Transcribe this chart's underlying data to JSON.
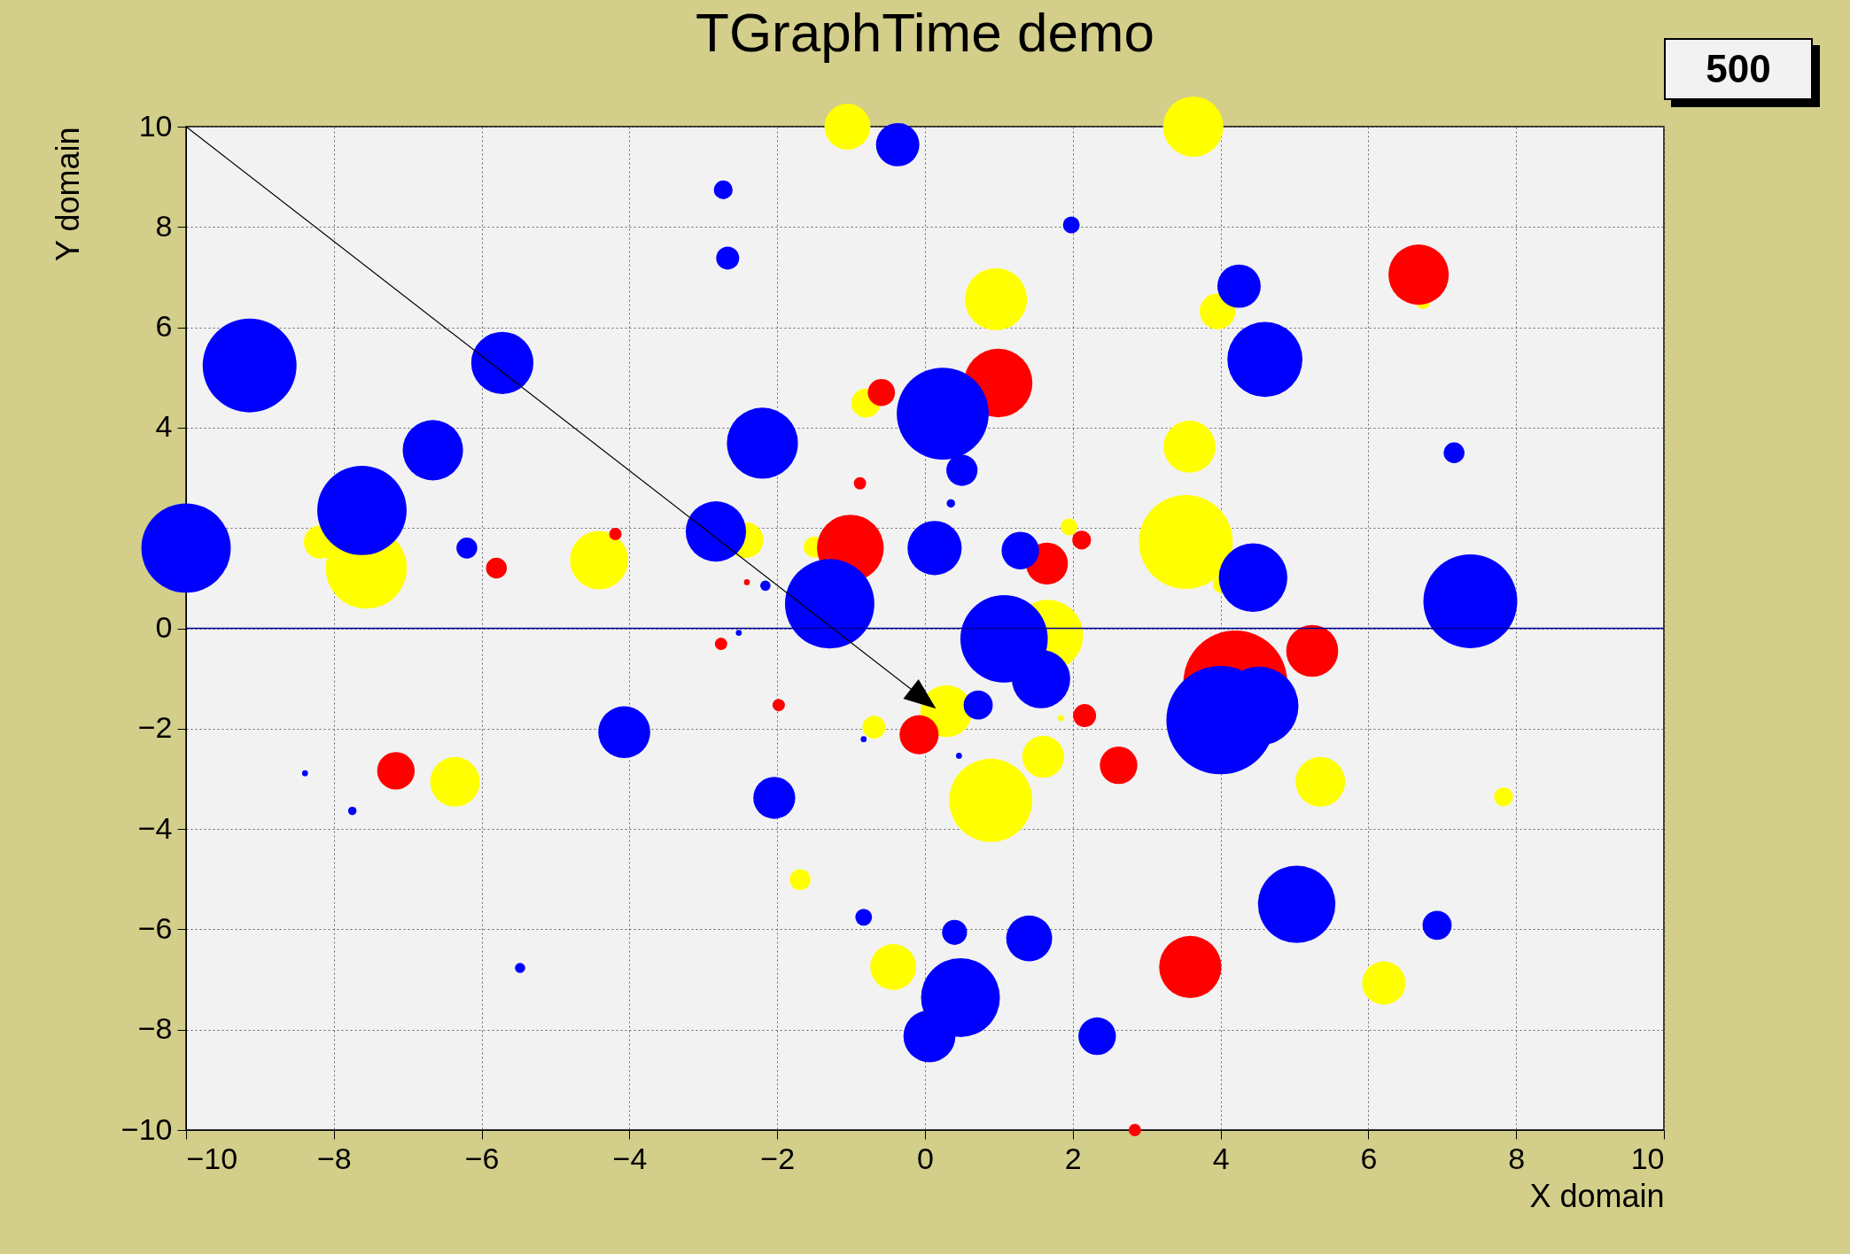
{
  "chart_data": {
    "type": "bubble",
    "title": "TGraphTime demo",
    "xlabel": "X domain",
    "ylabel": "Y domain",
    "annotations": [
      "500"
    ],
    "xlim": [
      -10,
      10
    ],
    "ylim": [
      -10,
      10
    ],
    "xticks": [
      -10,
      -8,
      -6,
      -4,
      -2,
      0,
      2,
      4,
      6,
      8,
      10
    ],
    "yticks": [
      -10,
      -8,
      -6,
      -4,
      -2,
      0,
      {
        "value": 2,
        "label": null
      },
      4,
      6,
      8,
      10
    ],
    "grid": true,
    "legend": false,
    "marker": "circle",
    "ref_lines": [
      {
        "axis": "y",
        "value": 0,
        "color": "#000099"
      }
    ],
    "series": [
      {
        "color": "#ffff00",
        "x": [
          -8.18,
          -7.56,
          -4.41,
          -6.36,
          -2.43,
          -1.5,
          -1.05,
          3.63,
          -0.8,
          0.96,
          3.96,
          6.74,
          3.58,
          3.53,
          1.95,
          4.01,
          1.66,
          0.29,
          -0.69,
          1.6,
          0.89,
          1.84,
          5.35,
          7.83,
          -1.69,
          -0.43,
          6.21
        ],
        "values": [
          1.72,
          1.2,
          1.36,
          -3.06,
          1.76,
          1.62,
          10,
          10,
          4.49,
          6.56,
          6.32,
          6.51,
          3.62,
          1.72,
          2.02,
          0.87,
          -0.14,
          -1.65,
          -1.97,
          -2.56,
          -3.43,
          -1.79,
          -3.06,
          -3.36,
          -5.01,
          -6.75,
          -7.07
        ],
        "sizes": [
          0.095,
          0.56,
          0.29,
          0.21,
          0.11,
          0.037,
          0.18,
          0.31,
          0.072,
          0.33,
          0.11,
          0.018,
          0.23,
          0.75,
          0.024,
          0.024,
          0.43,
          0.23,
          0.045,
          0.15,
          0.59,
          0.003,
          0.21,
          0.03,
          0.037,
          0.18,
          0.16
        ]
      },
      {
        "color": "#ff0000",
        "x": [
          -5.8,
          -7.16,
          -4.19,
          -2.76,
          -2.41,
          -1.98,
          -0.88,
          -1.01,
          -0.59,
          0.99,
          -0.08,
          1.65,
          2.12,
          2.16,
          2.62,
          4.2,
          5.24,
          6.68,
          3.59,
          2.84
        ],
        "values": [
          1.2,
          -2.84,
          1.88,
          -0.31,
          0.92,
          -1.53,
          2.89,
          1.6,
          4.7,
          4.89,
          -2.12,
          1.29,
          1.76,
          -1.74,
          -2.73,
          -1.08,
          -0.45,
          7.05,
          -6.75,
          -10
        ],
        "sizes": [
          0.037,
          0.12,
          0.013,
          0.013,
          0.003,
          0.013,
          0.013,
          0.38,
          0.063,
          0.4,
          0.13,
          0.15,
          0.03,
          0.045,
          0.12,
          0.92,
          0.23,
          0.31,
          0.33,
          0.013
        ]
      },
      {
        "color": "#0000ff",
        "x": [
          -9.14,
          -10,
          -7.62,
          -6.66,
          -5.72,
          -6.2,
          -8.39,
          -7.75,
          -5.48,
          -4.07,
          -2.73,
          -2.67,
          -2.83,
          -2.2,
          -2.16,
          -2.52,
          -2.04,
          -1.29,
          -0.37,
          0.24,
          0.5,
          0.35,
          0.13,
          1.07,
          1.29,
          1.57,
          0.72,
          1.98,
          -0.83,
          0.46,
          -0.83,
          0.4,
          1.41,
          0.48,
          0.06,
          2.33,
          4.25,
          4.6,
          4.44,
          4.52,
          4.0,
          5.03,
          6.93,
          7.16,
          7.38
        ],
        "values": [
          5.24,
          1.6,
          2.35,
          3.55,
          5.29,
          1.6,
          -2.89,
          -3.64,
          -6.77,
          -2.07,
          8.74,
          7.38,
          1.93,
          3.69,
          0.85,
          -0.09,
          -3.38,
          0.49,
          9.64,
          4.28,
          3.15,
          2.49,
          1.6,
          -0.21,
          1.55,
          -1.01,
          -1.53,
          8.04,
          -2.21,
          -2.54,
          -5.76,
          -6.06,
          -6.18,
          -7.36,
          -8.13,
          -8.13,
          6.82,
          5.36,
          1.01,
          -1.55,
          -1.83,
          -5.5,
          -5.92,
          3.5,
          0.54
        ],
        "sizes": [
          0.75,
          0.68,
          0.68,
          0.31,
          0.33,
          0.037,
          0.003,
          0.006,
          0.009,
          0.23,
          0.03,
          0.045,
          0.31,
          0.43,
          0.009,
          0.003,
          0.15,
          0.68,
          0.16,
          0.72,
          0.083,
          0.006,
          0.25,
          0.65,
          0.12,
          0.29,
          0.072,
          0.024,
          0.003,
          0.003,
          0.024,
          0.053,
          0.18,
          0.53,
          0.23,
          0.12,
          0.16,
          0.48,
          0.4,
          0.53,
          1,
          0.51,
          0.072,
          0.037,
          0.75
        ]
      }
    ]
  }
}
